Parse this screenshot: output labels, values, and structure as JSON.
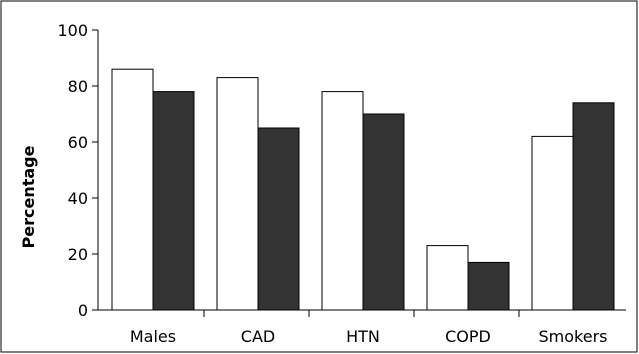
{
  "chart_data": {
    "type": "bar",
    "title": "",
    "xlabel": "",
    "ylabel": "Percentage",
    "categories": [
      "Males",
      "CAD",
      "HTN",
      "COPD",
      "Smokers"
    ],
    "series": [
      {
        "values": [
          86,
          83,
          78,
          23,
          62
        ],
        "color": "#ffffff"
      },
      {
        "values": [
          78,
          65,
          70,
          17,
          74
        ],
        "color": "#333333"
      }
    ],
    "ylim": [
      0,
      100
    ],
    "yticks": [
      0,
      20,
      40,
      60,
      80,
      100
    ],
    "grid": false,
    "legend": "none"
  }
}
